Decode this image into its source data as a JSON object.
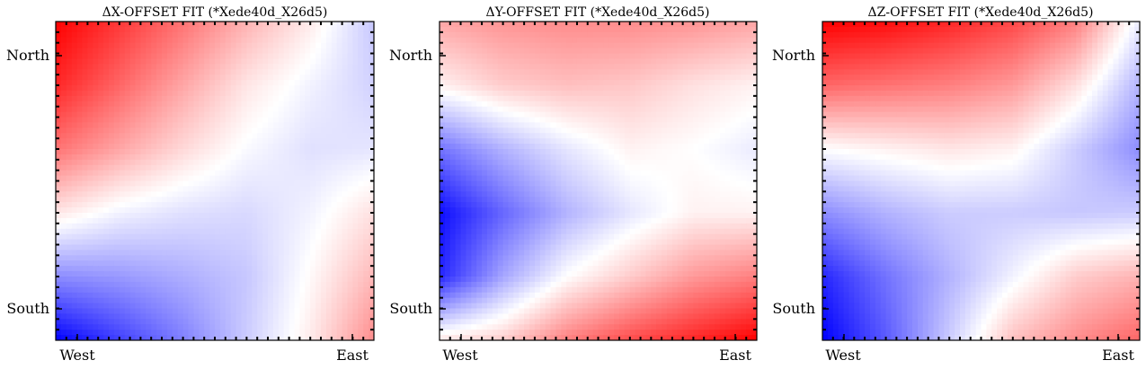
{
  "figure": {
    "panels": [
      {
        "title": "ΔX-OFFSET FIT (*Xede40d_X26d5)",
        "xticks": [
          "West",
          "East"
        ],
        "yticks": [
          "North",
          "South"
        ]
      },
      {
        "title": "ΔY-OFFSET FIT (*Xede40d_X26d5)",
        "xticks": [
          "West",
          "East"
        ],
        "yticks": [
          "North",
          "South"
        ]
      },
      {
        "title": "ΔZ-OFFSET FIT (*Xede40d_X26d5)",
        "xticks": [
          "West",
          "East"
        ],
        "yticks": [
          "North",
          "South"
        ]
      }
    ]
  },
  "chart_data": [
    {
      "type": "heatmap",
      "title": "ΔX-OFFSET FIT (*Xede40d_X26d5)",
      "colormap": "bwr",
      "colors": {
        "low": "#0000ff",
        "mid": "#ffffff",
        "high": "#ff0000"
      },
      "x_categories": [
        "West",
        "East"
      ],
      "y_categories": [
        "North",
        "South"
      ],
      "xlim": [
        0,
        1
      ],
      "ylim": [
        0,
        1
      ],
      "grid": false,
      "corner_values": {
        "north_west": 1.0,
        "north_east": -0.22,
        "south_west": -1.0,
        "south_east": 0.45
      },
      "field_samples": [
        [
          1.0,
          0.78,
          0.55,
          0.3,
          0.08,
          -0.22
        ],
        [
          0.85,
          0.6,
          0.35,
          0.1,
          -0.05,
          -0.18
        ],
        [
          0.55,
          0.35,
          0.15,
          -0.02,
          -0.12,
          -0.1
        ],
        [
          0.1,
          -0.05,
          -0.12,
          -0.15,
          -0.05,
          0.12
        ],
        [
          -0.45,
          -0.4,
          -0.32,
          -0.22,
          0.02,
          0.28
        ],
        [
          -1.0,
          -0.75,
          -0.5,
          -0.2,
          0.08,
          0.45
        ]
      ]
    },
    {
      "type": "heatmap",
      "title": "ΔY-OFFSET FIT (*Xede40d_X26d5)",
      "colormap": "bwr",
      "colors": {
        "low": "#0000ff",
        "mid": "#ffffff",
        "high": "#ff0000"
      },
      "x_categories": [
        "West",
        "East"
      ],
      "y_categories": [
        "North",
        "South"
      ],
      "xlim": [
        0,
        1
      ],
      "ylim": [
        0,
        1
      ],
      "grid": false,
      "corner_values": {
        "north_west": 0.35,
        "north_east": 0.35,
        "south_west": 0.1,
        "south_east": 1.0
      },
      "field_samples": [
        [
          0.35,
          0.42,
          0.45,
          0.45,
          0.42,
          0.35
        ],
        [
          0.05,
          0.2,
          0.25,
          0.22,
          0.12,
          0.05
        ],
        [
          -0.55,
          -0.3,
          -0.1,
          0.05,
          0.0,
          -0.08
        ],
        [
          -0.95,
          -0.6,
          -0.3,
          -0.1,
          0.05,
          0.05
        ],
        [
          -0.85,
          -0.35,
          0.0,
          0.2,
          0.4,
          0.5
        ],
        [
          0.1,
          0.2,
          0.5,
          0.7,
          0.85,
          1.0
        ]
      ]
    },
    {
      "type": "heatmap",
      "title": "ΔZ-OFFSET FIT (*Xede40d_X26d5)",
      "colormap": "bwr",
      "colors": {
        "low": "#0000ff",
        "mid": "#ffffff",
        "high": "#ff0000"
      },
      "x_categories": [
        "West",
        "East"
      ],
      "y_categories": [
        "North",
        "South"
      ],
      "xlim": [
        0,
        1
      ],
      "ylim": [
        0,
        1
      ],
      "grid": false,
      "corner_values": {
        "north_west": 1.0,
        "north_east": -0.08,
        "south_west": -1.0,
        "south_east": 0.6
      },
      "field_samples": [
        [
          1.0,
          0.95,
          0.85,
          0.72,
          0.5,
          -0.08
        ],
        [
          0.6,
          0.55,
          0.5,
          0.4,
          0.12,
          -0.3
        ],
        [
          0.0,
          0.05,
          0.1,
          0.05,
          -0.2,
          -0.45
        ],
        [
          -0.45,
          -0.3,
          -0.2,
          -0.2,
          -0.22,
          -0.2
        ],
        [
          -0.85,
          -0.55,
          -0.3,
          -0.05,
          0.2,
          0.3
        ],
        [
          -1.0,
          -0.65,
          -0.2,
          0.25,
          0.45,
          0.6
        ]
      ]
    }
  ]
}
